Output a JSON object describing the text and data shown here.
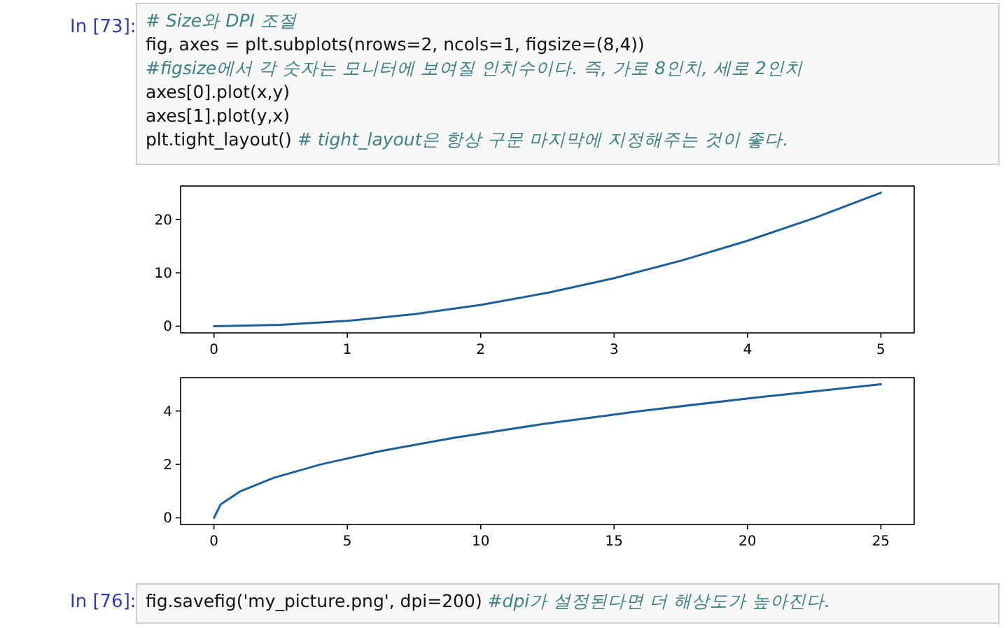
{
  "chart_data": [
    {
      "type": "other",
      "annotations": [
        "In [73]:",
        "# Size와 DPI 조절",
        "fig, axes = plt.subplots(nrows=2, ncols=1, figsize=(8,4))",
        "#figsize에서 각 숫자는 모니터에 보여질 인치수이다. 즉, 가로 8인치, 세로 2인치",
        "axes[0].plot(x,y)",
        "axes[1].plot(y,x)",
        "plt.tight_layout() # tight_layout은 항상 구문 마지막에 지정해주는 것이 좋다."
      ]
    },
    {
      "type": "line",
      "x": [
        0,
        0.5,
        1,
        1.5,
        2,
        2.5,
        3,
        3.5,
        4,
        4.5,
        5
      ],
      "series": [
        {
          "color": "#1f5f99",
          "values": [
            0,
            0.25,
            1,
            2.25,
            4,
            6.25,
            9,
            12.25,
            16,
            20.25,
            25
          ]
        }
      ],
      "xlim": [
        -0.25,
        5.25
      ],
      "ylim": [
        -1.25,
        26.25
      ],
      "xticks": [
        0,
        1,
        2,
        3,
        4,
        5
      ],
      "yticks": [
        0,
        10,
        20
      ]
    },
    {
      "type": "line",
      "x": [
        0,
        0.25,
        1,
        2.25,
        4,
        6.25,
        9,
        12.25,
        16,
        20.25,
        25
      ],
      "series": [
        {
          "color": "#1f5f99",
          "values": [
            0,
            0.5,
            1,
            1.5,
            2,
            2.5,
            3,
            3.5,
            4,
            4.5,
            5
          ]
        }
      ],
      "xlim": [
        -1.25,
        26.25
      ],
      "ylim": [
        -0.25,
        5.25
      ],
      "xticks": [
        0,
        5,
        10,
        15,
        20,
        25
      ],
      "yticks": [
        0,
        2,
        4
      ]
    },
    {
      "type": "other",
      "annotations": [
        "In [76]:",
        "fig.savefig('my_picture.png', dpi=200) #dpi가 설정된다면 더 해상도가 높아진다."
      ]
    }
  ]
}
